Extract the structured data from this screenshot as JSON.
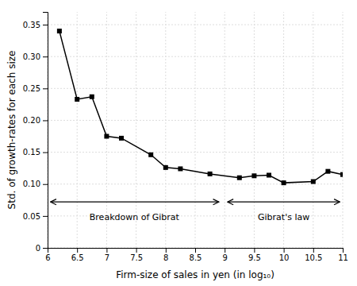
{
  "chart_data": {
    "type": "line",
    "xlabel": "Firm-size of sales in yen (in log₁₀)",
    "ylabel": "Std. of growth-rates for each size",
    "x": [
      6.2,
      6.5,
      6.75,
      7.0,
      7.25,
      7.75,
      8.0,
      8.25,
      8.75,
      9.25,
      9.5,
      9.75,
      10.0,
      10.5,
      10.75,
      11.0
    ],
    "values": [
      0.34,
      0.233,
      0.237,
      0.175,
      0.172,
      0.146,
      0.126,
      0.124,
      0.116,
      0.11,
      0.113,
      0.114,
      0.102,
      0.104,
      0.12,
      0.115
    ],
    "color": "black",
    "marker": "square",
    "xlim": [
      6,
      11
    ],
    "ylim": [
      0,
      0.37
    ],
    "xticks": [
      6,
      6.5,
      7,
      7.5,
      8,
      8.5,
      9,
      9.5,
      10,
      10.5,
      11
    ],
    "yticks": [
      0,
      0.05,
      {
        "value": 0.1,
        "label": "0.10"
      },
      0.15,
      {
        "value": 0.2,
        "label": "0.20"
      },
      0.25,
      {
        "value": 0.3,
        "label": "0.30"
      },
      0.35
    ],
    "grid": true,
    "annotations": [
      {
        "text": "Breakdown of Gibrat",
        "x": 7.47,
        "y": 0.053,
        "arrow": {
          "x": [
            6.05,
            8.9
          ],
          "y": 0.072
        }
      },
      {
        "text": "Gibrat's law",
        "x": 10.0,
        "y": 0.053,
        "arrow": {
          "x": [
            9.05,
            10.95
          ],
          "y": 0.072
        }
      }
    ]
  }
}
